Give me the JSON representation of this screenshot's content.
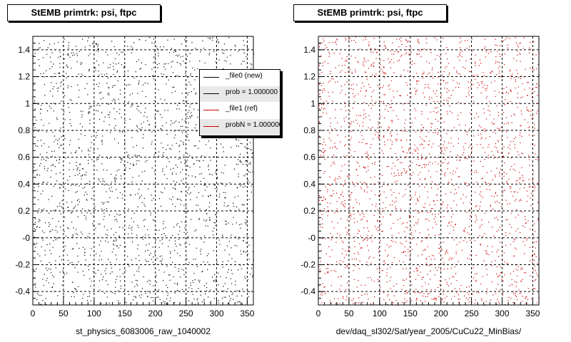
{
  "chart_data": [
    {
      "type": "scatter",
      "title": "StEMB primtrk: psi, ftpc",
      "xlabel": "st_physics_6083006_raw_1040002",
      "ylabel": "",
      "xlim": [
        0,
        360
      ],
      "ylim": [
        -0.5,
        1.5
      ],
      "xticks": [
        0,
        50,
        100,
        150,
        200,
        250,
        300,
        350
      ],
      "xtick_labels": [
        "0",
        "50",
        "100",
        "150",
        "200",
        "250",
        "300",
        "350"
      ],
      "yticks": [
        -0.4,
        -0.2,
        0,
        0.2,
        0.4,
        0.6,
        0.8,
        1,
        1.2,
        1.4
      ],
      "ytick_labels": [
        "-0.4",
        "-0.2",
        "-0",
        "0.2",
        "0.4",
        "0.6",
        "0.8",
        "1",
        "1.2",
        "1.4"
      ],
      "grid": true,
      "marker_color": "#000000",
      "legend": [
        {
          "label": "_file0 (new)",
          "color": "#000000"
        },
        {
          "label": "prob = 1.000000",
          "color": "#000000"
        },
        {
          "label": "_file1 (ref)",
          "color": "#cc0000"
        },
        {
          "label": "probN = 1.000000",
          "color": "#cc0000"
        }
      ],
      "legend_placement": "top-right"
    },
    {
      "type": "scatter",
      "title": "StEMB primtrk: psi, ftpc",
      "xlabel": "dev/daq_sl302/Sat/year_2005/CuCu22_MinBias/",
      "ylabel": "",
      "xlim": [
        0,
        360
      ],
      "ylim": [
        -0.5,
        1.5
      ],
      "xticks": [
        0,
        50,
        100,
        150,
        200,
        250,
        300,
        350
      ],
      "xtick_labels": [
        "0",
        "50",
        "100",
        "150",
        "200",
        "250",
        "300",
        "350"
      ],
      "yticks": [
        -0.4,
        -0.2,
        0,
        0.2,
        0.4,
        0.6,
        0.8,
        1,
        1.2,
        1.4
      ],
      "ytick_labels": [
        "-0.4",
        "-0.2",
        "-0",
        "0.2",
        "0.4",
        "0.6",
        "0.8",
        "1",
        "1.2",
        "1.4"
      ],
      "grid": true,
      "marker_color": "#cc0000"
    }
  ]
}
